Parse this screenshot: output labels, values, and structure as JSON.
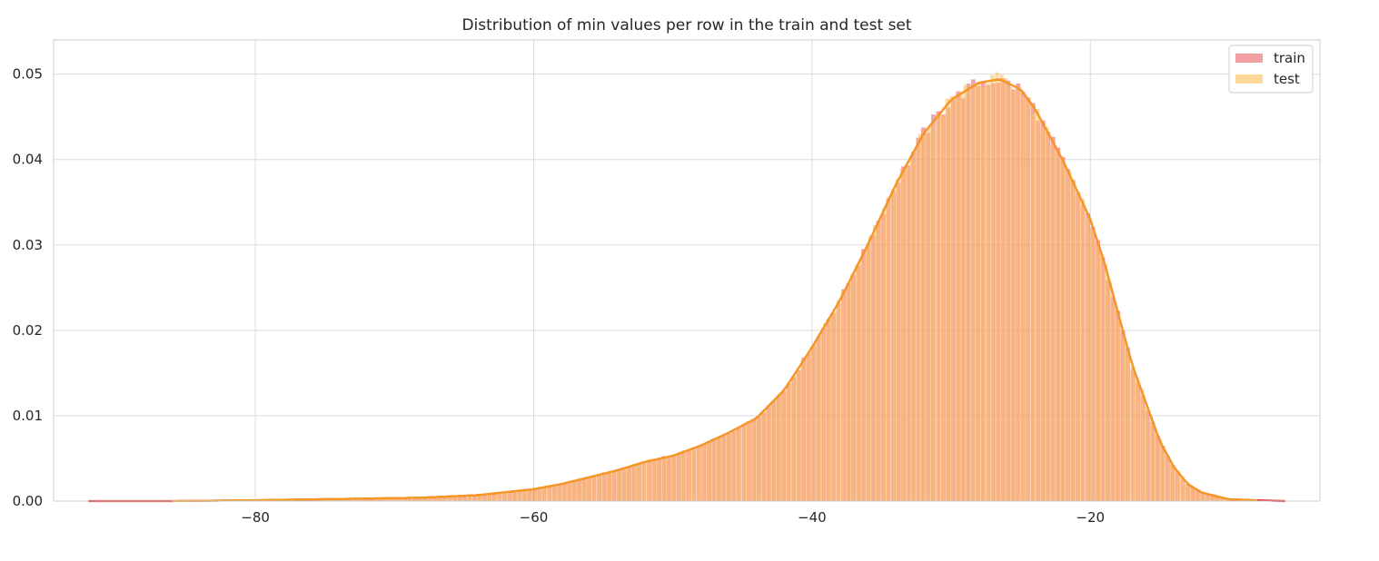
{
  "chart_data": {
    "type": "bar",
    "title": "Distribution of min values per row in the train and test set",
    "xlabel": "",
    "ylabel": "",
    "xlim": [
      -94.5,
      -3.5
    ],
    "ylim": [
      0,
      0.054
    ],
    "grid": true,
    "legend_position": "top-right",
    "x_ticks": [
      -80,
      -60,
      -40,
      -20
    ],
    "x_tick_labels": [
      "−80",
      "−60",
      "−40",
      "−20"
    ],
    "y_ticks": [
      0.0,
      0.01,
      0.02,
      0.03,
      0.04,
      0.05
    ],
    "y_tick_labels": [
      "0.00",
      "0.01",
      "0.02",
      "0.03",
      "0.04",
      "0.05"
    ],
    "kde_x": [
      -92,
      -86,
      -80,
      -76,
      -72,
      -68,
      -64,
      -60,
      -58,
      -56,
      -54,
      -52,
      -50,
      -48,
      -46,
      -44,
      -42,
      -40,
      -38,
      -36,
      -34,
      -32,
      -30,
      -28,
      -26.5,
      -25,
      -24,
      -22,
      -20,
      -19,
      -18,
      -17,
      -16,
      -15,
      -14,
      -13,
      -12,
      -10,
      -8,
      -6
    ],
    "series": [
      {
        "name": "train",
        "color": "#e8595e",
        "line_color": "#e6261f",
        "x_range": [
          -92,
          -6
        ],
        "density": [
          0,
          0,
          0.0001,
          0.0002,
          0.0003,
          0.0004,
          0.0007,
          0.0014,
          0.002,
          0.0028,
          0.0036,
          0.0046,
          0.0053,
          0.0065,
          0.008,
          0.0097,
          0.013,
          0.018,
          0.0235,
          0.03,
          0.037,
          0.043,
          0.047,
          0.049,
          0.0494,
          0.0482,
          0.046,
          0.04,
          0.033,
          0.028,
          0.022,
          0.016,
          0.0115,
          0.007,
          0.004,
          0.002,
          0.001,
          0.0002,
          0.0001,
          0
        ]
      },
      {
        "name": "test",
        "color": "#fbc266",
        "line_color": "#f59a20",
        "x_range": [
          -86,
          -8
        ],
        "density": [
          0,
          0,
          0.0001,
          0.0002,
          0.0003,
          0.0004,
          0.0007,
          0.0014,
          0.002,
          0.0028,
          0.0036,
          0.0046,
          0.0053,
          0.0065,
          0.008,
          0.0097,
          0.013,
          0.018,
          0.0235,
          0.03,
          0.037,
          0.043,
          0.047,
          0.049,
          0.0494,
          0.0482,
          0.046,
          0.04,
          0.033,
          0.028,
          0.022,
          0.016,
          0.0115,
          0.007,
          0.004,
          0.002,
          0.001,
          0.0002,
          0.0001,
          0
        ]
      }
    ]
  }
}
